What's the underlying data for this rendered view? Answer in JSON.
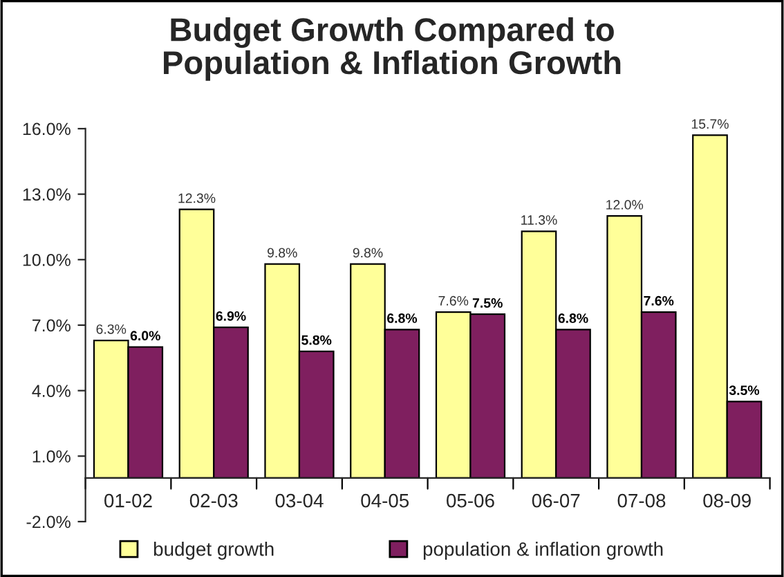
{
  "chart_data": {
    "type": "bar",
    "title": "Budget Growth Compared to\nPopulation & Inflation Growth",
    "categories": [
      "01-02",
      "02-03",
      "03-04",
      "04-05",
      "05-06",
      "06-07",
      "07-08",
      "08-09"
    ],
    "series": [
      {
        "name": "budget growth",
        "color": "#ffff99",
        "values": [
          6.3,
          12.3,
          9.8,
          9.8,
          7.6,
          11.3,
          12.0,
          15.7
        ],
        "value_labels": [
          "6.3%",
          "12.3%",
          "9.8%",
          "9.8%",
          "7.6%",
          "11.3%",
          "12.0%",
          "15.7%"
        ]
      },
      {
        "name": "population & inflation growth",
        "color": "#7f1f5f",
        "values": [
          6.0,
          6.9,
          5.8,
          6.8,
          7.5,
          6.8,
          7.6,
          3.5
        ],
        "value_labels": [
          "6.0%",
          "6.9%",
          "5.8%",
          "6.8%",
          "7.5%",
          "6.8%",
          "7.6%",
          "3.5%"
        ]
      }
    ],
    "ylim": [
      -2,
      16
    ],
    "yticks": [
      {
        "value": -2,
        "label": "-2.0%"
      },
      {
        "value": 1,
        "label": "1.0%"
      },
      {
        "value": 4,
        "label": "4.0%"
      },
      {
        "value": 7,
        "label": "7.0%"
      },
      {
        "value": 10,
        "label": "10.0%"
      },
      {
        "value": 13,
        "label": "13.0%"
      },
      {
        "value": 16,
        "label": "16.0%"
      }
    ],
    "grid": false,
    "legend": "bottom"
  }
}
